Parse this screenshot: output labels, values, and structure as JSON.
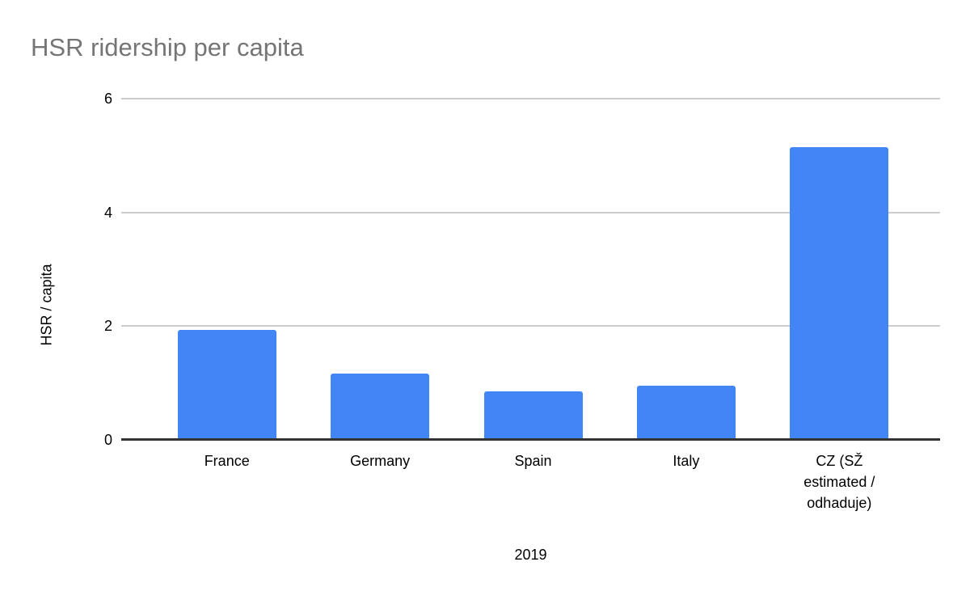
{
  "chart_data": {
    "type": "bar",
    "title": "HSR ridership per capita",
    "xlabel": "2019",
    "ylabel": "HSR / capita",
    "categories": [
      "France",
      "Germany",
      "Spain",
      "Italy",
      "CZ (SŽ estimated / odhaduje)"
    ],
    "values": [
      1.93,
      1.16,
      0.85,
      0.95,
      5.15
    ],
    "ylim": [
      0,
      6
    ],
    "yticks": [
      0,
      2,
      4,
      6
    ],
    "grid": true,
    "legend_position": "none",
    "bar_color": "#4285f4",
    "title_color": "#757575",
    "gridline_color": "#cccccc",
    "baseline_color": "#333333",
    "axis_text_color": "#000000"
  }
}
